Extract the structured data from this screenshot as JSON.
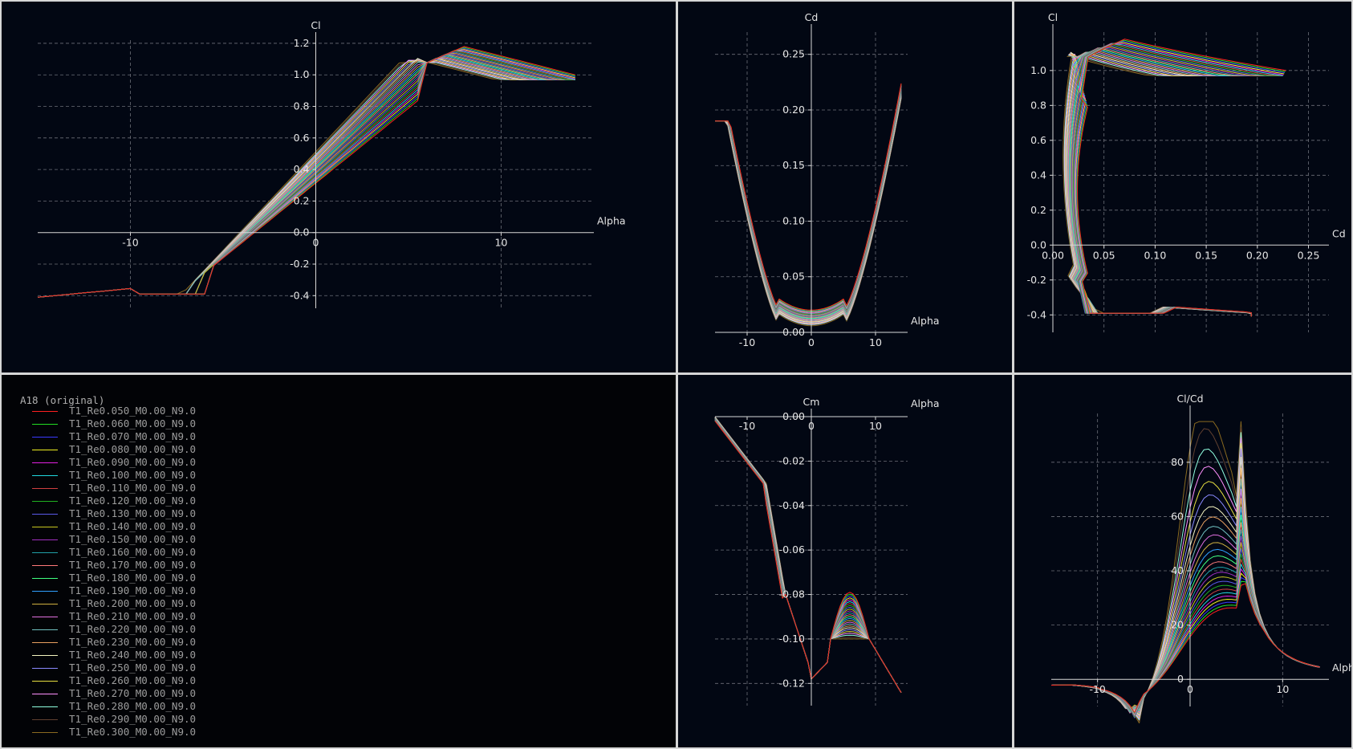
{
  "legend": {
    "title": "A18 (original)",
    "items": [
      {
        "label": "T1_Re0.050_M0.00_N9.0",
        "color": "#ff2020"
      },
      {
        "label": "T1_Re0.060_M0.00_N9.0",
        "color": "#22dd22"
      },
      {
        "label": "T1_Re0.070_M0.00_N9.0",
        "color": "#3a3aff"
      },
      {
        "label": "T1_Re0.080_M0.00_N9.0",
        "color": "#f0f020"
      },
      {
        "label": "T1_Re0.090_M0.00_N9.0",
        "color": "#e020e0"
      },
      {
        "label": "T1_Re0.100_M0.00_N9.0",
        "color": "#20d8e0"
      },
      {
        "label": "T1_Re0.110_M0.00_N9.0",
        "color": "#d04040"
      },
      {
        "label": "T1_Re0.120_M0.00_N9.0",
        "color": "#20b020"
      },
      {
        "label": "T1_Re0.130_M0.00_N9.0",
        "color": "#5a5ae8"
      },
      {
        "label": "T1_Re0.140_M0.00_N9.0",
        "color": "#c8c820"
      },
      {
        "label": "T1_Re0.150_M0.00_N9.0",
        "color": "#a030c0"
      },
      {
        "label": "T1_Re0.160_M0.00_N9.0",
        "color": "#20a0a8"
      },
      {
        "label": "T1_Re0.170_M0.00_N9.0",
        "color": "#ff7a7a"
      },
      {
        "label": "T1_Re0.180_M0.00_N9.0",
        "color": "#40ff80"
      },
      {
        "label": "T1_Re0.190_M0.00_N9.0",
        "color": "#30a0ff"
      },
      {
        "label": "T1_Re0.200_M0.00_N9.0",
        "color": "#d0b040"
      },
      {
        "label": "T1_Re0.210_M0.00_N9.0",
        "color": "#e070e0"
      },
      {
        "label": "T1_Re0.220_M0.00_N9.0",
        "color": "#70c0c0"
      },
      {
        "label": "T1_Re0.230_M0.00_N9.0",
        "color": "#e8a060"
      },
      {
        "label": "T1_Re0.240_M0.00_N9.0",
        "color": "#f4f4c0"
      },
      {
        "label": "T1_Re0.250_M0.00_N9.0",
        "color": "#8a8aff"
      },
      {
        "label": "T1_Re0.260_M0.00_N9.0",
        "color": "#e8e040"
      },
      {
        "label": "T1_Re0.270_M0.00_N9.0",
        "color": "#ff90ff"
      },
      {
        "label": "T1_Re0.280_M0.00_N9.0",
        "color": "#90ffe0"
      },
      {
        "label": "T1_Re0.290_M0.00_N9.0",
        "color": "#604030"
      },
      {
        "label": "T1_Re0.300_M0.00_N9.0",
        "color": "#8a6a20"
      }
    ]
  },
  "chart_data": [
    {
      "id": "cl-alpha",
      "type": "line",
      "xlabel": "Alpha",
      "ylabel": "Cl",
      "xlim": [
        -15,
        15
      ],
      "ylim": [
        -0.48,
        1.22
      ],
      "xticks": [
        -10,
        0,
        10
      ],
      "yticks": [
        -0.4,
        -0.2,
        0.0,
        0.2,
        0.4,
        0.6,
        0.8,
        1.0,
        1.2
      ],
      "xtick_labels": [
        "-10",
        "0",
        "10"
      ],
      "ytick_labels": [
        "-0.4",
        "-0.2",
        "0.0",
        "0.2",
        "0.4",
        "0.6",
        "0.8",
        "1.0",
        "1.2"
      ],
      "grid": true
    },
    {
      "id": "cd-alpha",
      "type": "line",
      "xlabel": "Alpha",
      "ylabel": "Cd",
      "xlim": [
        -15,
        15
      ],
      "ylim": [
        0,
        0.27
      ],
      "xticks": [
        -10,
        0,
        10
      ],
      "yticks": [
        0.0,
        0.05,
        0.1,
        0.15,
        0.2,
        0.25
      ],
      "xtick_labels": [
        "-10",
        "0",
        "10"
      ],
      "ytick_labels": [
        "0.00",
        "0.05",
        "0.10",
        "0.15",
        "0.20",
        "0.25"
      ],
      "grid": true
    },
    {
      "id": "cl-cd",
      "type": "line",
      "xlabel": "Cd",
      "ylabel": "Cl",
      "xlim": [
        0,
        0.27
      ],
      "ylim": [
        -0.5,
        1.22
      ],
      "xticks": [
        0.0,
        0.05,
        0.1,
        0.15,
        0.2,
        0.25
      ],
      "yticks": [
        -0.4,
        -0.2,
        0.0,
        0.2,
        0.4,
        0.6,
        0.8,
        1.0
      ],
      "xtick_labels": [
        "0.00",
        "0.05",
        "0.10",
        "0.15",
        "0.20",
        "0.25"
      ],
      "ytick_labels": [
        "-0.4",
        "-0.2",
        "0.0",
        "0.2",
        "0.4",
        "0.6",
        "0.8",
        "1.0"
      ],
      "grid": true
    },
    {
      "id": "cm-alpha",
      "type": "line",
      "xlabel": "Alpha",
      "ylabel": "Cm",
      "xlim": [
        -15,
        15
      ],
      "ylim": [
        -0.13,
        0.0
      ],
      "xticks": [
        -10,
        0,
        10
      ],
      "yticks": [
        0.0,
        -0.02,
        -0.04,
        -0.06,
        -0.08,
        -0.1,
        -0.12
      ],
      "xtick_labels": [
        "-10",
        "0",
        "10"
      ],
      "ytick_labels": [
        "0.00",
        "-0.02",
        "-0.04",
        "-0.06",
        "-0.08",
        "-0.10",
        "-0.12"
      ],
      "grid": true
    },
    {
      "id": "clcd-alpha",
      "type": "line",
      "xlabel": "Alpha",
      "ylabel": "Cl/Cd",
      "xlim": [
        -15,
        15
      ],
      "ylim": [
        -10,
        98
      ],
      "xticks": [
        -10,
        0,
        10
      ],
      "yticks": [
        0,
        20,
        40,
        60,
        80
      ],
      "xtick_labels": [
        "-10",
        "0",
        "10"
      ],
      "ytick_labels": [
        "0",
        "20",
        "40",
        "60",
        "80"
      ],
      "grid": true
    }
  ]
}
